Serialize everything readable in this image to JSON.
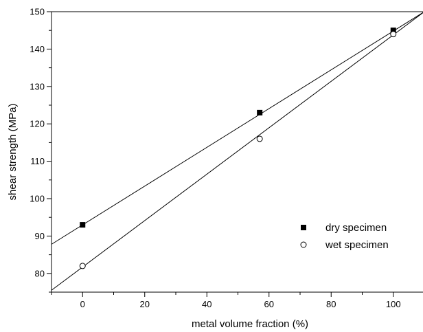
{
  "chart_data": {
    "type": "scatter",
    "title": "",
    "xlabel": "metal volume fraction (%)",
    "ylabel": "shear strength (MPa)",
    "xlim": [
      -10,
      110
    ],
    "ylim": [
      75,
      150
    ],
    "x_ticks": [
      0,
      20,
      40,
      60,
      80,
      100
    ],
    "y_ticks": [
      80,
      90,
      100,
      110,
      120,
      130,
      140,
      150
    ],
    "grid": false,
    "legend_position": "bottom-right",
    "series": [
      {
        "name": "dry specimen",
        "marker": "filled-square",
        "color": "#000000",
        "x": [
          0,
          57,
          100
        ],
        "y": [
          93,
          123,
          145
        ],
        "fit_line": {
          "x": [
            -10,
            110
          ],
          "y": [
            87.8,
            150
          ]
        }
      },
      {
        "name": "wet specimen",
        "marker": "open-circle",
        "color": "#000000",
        "x": [
          0,
          57,
          100
        ],
        "y": [
          82,
          116,
          144
        ],
        "fit_line": {
          "x": [
            -10,
            110
          ],
          "y": [
            75.5,
            150
          ]
        }
      }
    ]
  }
}
